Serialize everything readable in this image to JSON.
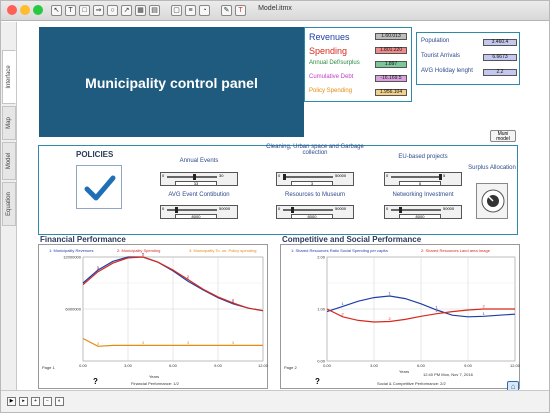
{
  "window": {
    "title": "Model.itmx"
  },
  "side_tabs": [
    {
      "label": "Interface"
    },
    {
      "label": "Map"
    },
    {
      "label": "Model"
    },
    {
      "label": "Equation"
    }
  ],
  "banner": {
    "title": "Municipality control panel"
  },
  "indicators": [
    {
      "label": "Revenues",
      "value": "1.60.013",
      "color": "#1f3fa6",
      "box_color": "#bdbdbd"
    },
    {
      "label": "Spending",
      "value": "1.801.220",
      "color": "#d8281c",
      "box_color": "#f08b8b"
    },
    {
      "label": "Annual Def/surplus",
      "value": "1.897",
      "color": "#2b8a3e",
      "box_color": "#7ac79a"
    },
    {
      "label": "Cumulative Debt",
      "value": "-16.169.5",
      "color": "#c43dc0",
      "box_color": "#d9a3e0"
    },
    {
      "label": "Policy Spending",
      "value": "1.956.104",
      "color": "#e38b12",
      "box_color": "#f3d08a"
    }
  ],
  "population_panel": [
    {
      "label": "Population",
      "value": "3.460.4"
    },
    {
      "label": "Tourist Arrivals",
      "value": "6.6673"
    },
    {
      "label": "AVG Holiday lenght",
      "value": "2.2"
    }
  ],
  "muni_model_button": {
    "label": "Muni model"
  },
  "policies": {
    "title": "POLICIES",
    "sliders": [
      {
        "label": "Annual Events",
        "min": "0",
        "max": "30",
        "value": "33",
        "fraction": 0.55
      },
      {
        "label": "Cleaning, Urban space and Garbage collection",
        "min": "0",
        "max": "50000",
        "value": "3",
        "fraction": 0.0
      },
      {
        "label": "EU-based projects",
        "min": "0",
        "max": "5",
        "value": "5",
        "fraction": 1.0
      },
      {
        "label": "AVG Event Contibution",
        "min": "0",
        "max": "50000",
        "value": "8000",
        "fraction": 0.16
      },
      {
        "label": "Resources to Museum",
        "min": "0",
        "max": "50000",
        "value": "8000",
        "fraction": 0.16
      },
      {
        "label": "Networking Investment",
        "min": "0",
        "max": "50000",
        "value": "8000",
        "fraction": 0.16
      }
    ],
    "surplus_label": "Surplus Allocation"
  },
  "financial": {
    "title": "Financial Performance",
    "legend": [
      "1: Municipality Revenues",
      "2: Municipality Spending",
      "3: Municipality To. on. Policy spending"
    ],
    "legend_colors": [
      "#1f3fa6",
      "#d8281c",
      "#e38b12"
    ],
    "page_label": "Page 1",
    "footer": "Financial Performance: 1/2",
    "xlabel": "Years",
    "y_ticks": [
      "12000000",
      "6000000",
      ""
    ],
    "y_tick_values": [
      12000000,
      6000000,
      0
    ],
    "x_ticks": [
      "0.00",
      "3.00",
      "6.00",
      "9.00",
      "12.00"
    ],
    "x_tick_values": [
      0,
      3,
      6,
      9,
      12
    ],
    "help": "?"
  },
  "competitive": {
    "title": "Competitive and Social Performance",
    "legend": [
      "1: Shared Resources Ratio Social Spending per capita",
      "2: Shared Resources Land area Image"
    ],
    "legend_colors": [
      "#1f3fa6",
      "#d8281c"
    ],
    "page_label": "Page 2",
    "footer": "Social & Competitive Performance: 2/2",
    "xlabel": "Years",
    "timestamp": "12:40 PM  Mon, Nov 7, 2016",
    "y_ticks": [
      "2.00",
      "1.00",
      "0.00"
    ],
    "y_tick_values": [
      2,
      1,
      0
    ],
    "x_ticks": [
      "0.00",
      "3.00",
      "6.00",
      "9.00",
      "12.00"
    ],
    "x_tick_values": [
      0,
      3,
      6,
      9,
      12
    ],
    "help": "?"
  },
  "chart_data": [
    {
      "type": "line",
      "title": "Financial Performance",
      "xlabel": "Years",
      "ylabel": "",
      "xlim": [
        0,
        12
      ],
      "ylim": [
        0,
        12000000
      ],
      "grid": true,
      "legend_position": "top",
      "x": [
        0,
        1,
        2,
        3,
        4,
        5,
        6,
        7,
        8,
        9,
        10,
        11,
        12
      ],
      "series": [
        {
          "name": "1: Municipality Revenues",
          "color": "#1f3fa6",
          "values": [
            9000000,
            10500000,
            11500000,
            12000000,
            12000000,
            11400000,
            10400000,
            9200000,
            8200000,
            7300000,
            6600000,
            6100000,
            5800000
          ]
        },
        {
          "name": "2: Municipality Spending",
          "color": "#d8281c",
          "values": [
            8800000,
            10300000,
            11300000,
            11900000,
            12000000,
            11400000,
            10500000,
            9400000,
            8300000,
            7400000,
            6700000,
            6100000,
            5800000
          ]
        },
        {
          "name": "3: Municipality To. on. Policy spending",
          "color": "#e38b12",
          "values": [
            2600000,
            1700000,
            1800000,
            1800000,
            1800000,
            1800000,
            1800000,
            1800000,
            1800000,
            1800000,
            1800000,
            1800000,
            1800000
          ]
        }
      ]
    },
    {
      "type": "line",
      "title": "Competitive and Social Performance",
      "xlabel": "Years",
      "ylabel": "",
      "xlim": [
        0,
        12
      ],
      "ylim": [
        0,
        2
      ],
      "grid": true,
      "legend_position": "top",
      "x": [
        0,
        1,
        2,
        3,
        4,
        5,
        6,
        7,
        8,
        9,
        10,
        11,
        12
      ],
      "series": [
        {
          "name": "1: Shared Resources Ratio Social Spending per capita",
          "color": "#1f3fa6",
          "values": [
            0.95,
            1.05,
            1.15,
            1.22,
            1.25,
            1.2,
            1.1,
            0.98,
            0.88,
            0.85,
            0.86,
            0.88,
            0.9
          ]
        },
        {
          "name": "2: Shared Resources Land area Image",
          "color": "#d8281c",
          "values": [
            1.0,
            0.85,
            0.78,
            0.75,
            0.76,
            0.8,
            0.86,
            0.91,
            0.95,
            0.98,
            1.0,
            1.0,
            1.0
          ]
        }
      ]
    }
  ]
}
